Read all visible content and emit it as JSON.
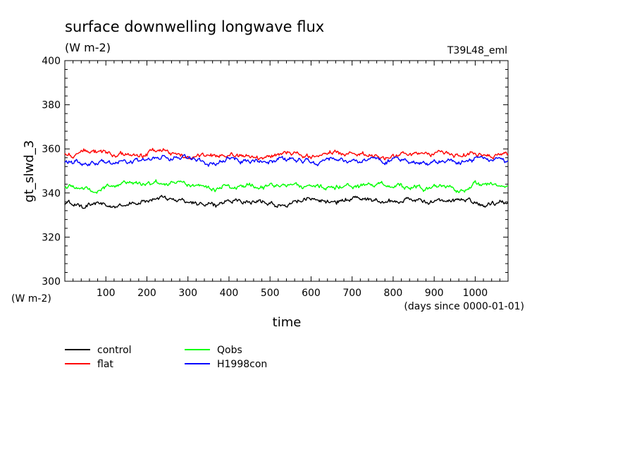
{
  "chart_data": {
    "type": "line",
    "title": "surface downwelling longwave flux",
    "units": "(W m-2)",
    "run_label": "T39L48_eml",
    "ylabel": "gt_slwd_3",
    "y_units": "(W m-2)",
    "xlabel": "time",
    "x_units": "(days since 0000-01-01)",
    "xlim": [
      0,
      1080
    ],
    "ylim": [
      300,
      400
    ],
    "x_ticks": [
      100,
      200,
      300,
      400,
      500,
      600,
      700,
      800,
      900,
      1000
    ],
    "y_ticks": [
      300,
      320,
      340,
      360,
      380,
      400
    ],
    "grid": false,
    "legend_position": "bottom-left",
    "series": [
      {
        "name": "control",
        "color": "#000000",
        "x": [
          0,
          60,
          120,
          180,
          240,
          300,
          360,
          420,
          480,
          540,
          600,
          660,
          720,
          780,
          840,
          900,
          960,
          1020,
          1080
        ],
        "values": [
          335,
          335,
          334,
          336,
          338,
          336,
          335,
          337,
          336,
          335,
          337,
          336,
          338,
          336,
          337,
          336,
          337,
          335,
          336
        ]
      },
      {
        "name": "flat",
        "color": "#ff0000",
        "x": [
          0,
          60,
          120,
          180,
          240,
          300,
          360,
          420,
          480,
          540,
          600,
          660,
          720,
          780,
          840,
          900,
          960,
          1020,
          1080
        ],
        "values": [
          358,
          359,
          358,
          357,
          359,
          357,
          357,
          358,
          356,
          358,
          357,
          358,
          357,
          357,
          358,
          358,
          357,
          358,
          357
        ]
      },
      {
        "name": "Qobs",
        "color": "#00ff00",
        "x": [
          0,
          60,
          120,
          180,
          240,
          300,
          360,
          420,
          480,
          540,
          600,
          660,
          720,
          780,
          840,
          900,
          960,
          1020,
          1080
        ],
        "values": [
          343,
          341,
          342,
          344,
          345,
          343,
          342,
          343,
          343,
          344,
          343,
          343,
          344,
          343,
          343,
          342,
          343,
          344,
          343
        ]
      },
      {
        "name": "H1998con",
        "color": "#0000ff",
        "x": [
          0,
          60,
          120,
          180,
          240,
          300,
          360,
          420,
          480,
          540,
          600,
          660,
          720,
          780,
          840,
          900,
          960,
          1020,
          1080
        ],
        "values": [
          354,
          353,
          354,
          355,
          356,
          355,
          354,
          355,
          354,
          355,
          354,
          355,
          355,
          354,
          355,
          354,
          355,
          355,
          354
        ]
      }
    ]
  }
}
